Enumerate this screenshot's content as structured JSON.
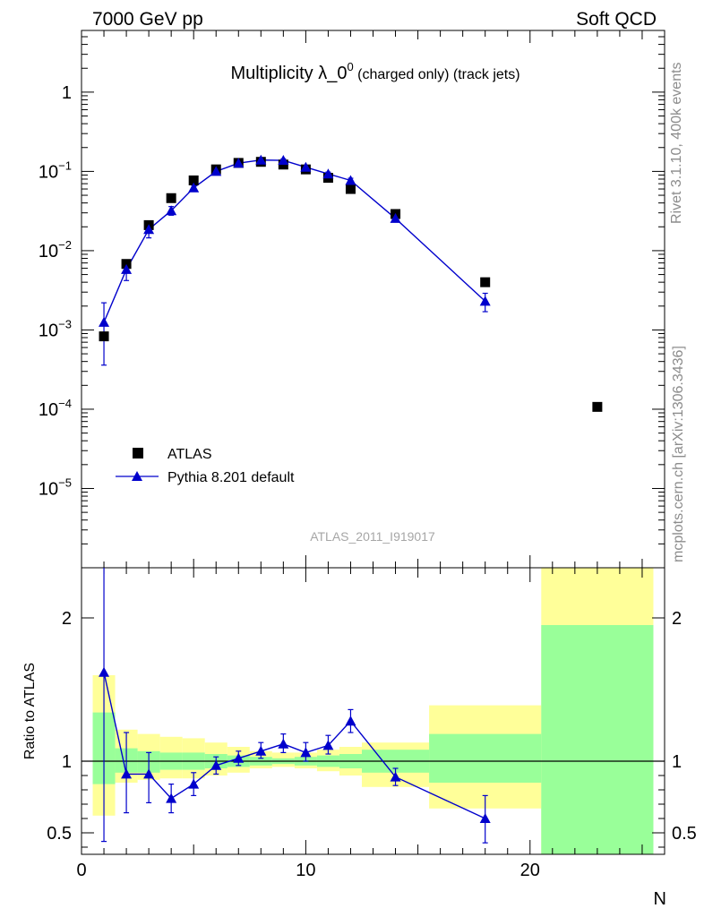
{
  "header": {
    "left": "7000 GeV pp",
    "right": "Soft QCD"
  },
  "side_text": {
    "rivet": "Rivet 3.1.10,  400k events",
    "mcplots": "mcplots.cern.ch [arXiv:1306.3436]"
  },
  "chart_data": [
    {
      "type": "scatter",
      "title_main": "Multiplicity λ_0",
      "title_sup": "0",
      "title_rest": " (charged only) (track jets)",
      "analysis_id": "ATLAS_2011_I919017",
      "yscale": "log",
      "xlim": [
        0,
        26
      ],
      "ylim": [
        1e-06,
        6
      ],
      "y_ticks": [
        {
          "value": 1,
          "base": "1",
          "exp": ""
        },
        {
          "value": 0.1,
          "base": "10",
          "exp": "−1"
        },
        {
          "value": 0.01,
          "base": "10",
          "exp": "−2"
        },
        {
          "value": 0.001,
          "base": "10",
          "exp": "−3"
        },
        {
          "value": 0.0001,
          "base": "10",
          "exp": "−4"
        },
        {
          "value": 1e-05,
          "base": "10",
          "exp": "−5"
        }
      ],
      "legend_placement": "bottom-left",
      "series": [
        {
          "name": "ATLAS",
          "color": "#000000",
          "marker": "square",
          "x": [
            1,
            2,
            3,
            4,
            5,
            6,
            7,
            8,
            9,
            10,
            11,
            12,
            14,
            18,
            23
          ],
          "y": [
            0.00083,
            0.0068,
            0.021,
            0.046,
            0.077,
            0.106,
            0.128,
            0.132,
            0.122,
            0.106,
            0.083,
            0.06,
            0.029,
            0.004,
            0.000107
          ]
        },
        {
          "name": "Pythia 8.201 default",
          "color": "#0000cc",
          "marker": "triangle",
          "x": [
            1,
            2,
            3,
            4,
            5,
            6,
            7,
            8,
            9,
            10,
            11,
            12,
            14,
            18
          ],
          "y": [
            0.00125,
            0.0058,
            0.0185,
            0.032,
            0.062,
            0.1,
            0.127,
            0.139,
            0.138,
            0.113,
            0.093,
            0.077,
            0.0255,
            0.0023
          ],
          "y_err_low": [
            0.00089,
            0.0016,
            0.004,
            0.004,
            0.005,
            0.006,
            0.006,
            0.006,
            0.006,
            0.006,
            0.005,
            0.005,
            0.0025,
            0.0006
          ],
          "y_err_high": [
            0.00095,
            0.0018,
            0.004,
            0.004,
            0.005,
            0.006,
            0.006,
            0.006,
            0.006,
            0.006,
            0.005,
            0.005,
            0.0025,
            0.0006
          ]
        }
      ]
    },
    {
      "type": "scatter",
      "ylabel": "Ratio to ATLAS",
      "xlabel": "N",
      "xlim": [
        0,
        26
      ],
      "ylim": [
        0.35,
        2.35
      ],
      "x_ticks": [
        0,
        10,
        20
      ],
      "y_ticks": [
        0.5,
        1,
        2
      ],
      "reference_line": 1,
      "bands": [
        {
          "x0": 0.5,
          "x1": 1.5,
          "yellow": [
            0.62,
            1.6
          ],
          "green": [
            0.84,
            1.34
          ]
        },
        {
          "x0": 1.5,
          "x1": 2.5,
          "yellow": [
            0.85,
            1.22
          ],
          "green": [
            0.92,
            1.09
          ]
        },
        {
          "x0": 2.5,
          "x1": 3.5,
          "yellow": [
            0.87,
            1.19
          ],
          "green": [
            0.92,
            1.07
          ]
        },
        {
          "x0": 3.5,
          "x1": 4.5,
          "yellow": [
            0.88,
            1.17
          ],
          "green": [
            0.94,
            1.06
          ]
        },
        {
          "x0": 4.5,
          "x1": 5.5,
          "yellow": [
            0.88,
            1.16
          ],
          "green": [
            0.94,
            1.06
          ]
        },
        {
          "x0": 5.5,
          "x1": 6.5,
          "yellow": [
            0.9,
            1.13
          ],
          "green": [
            0.95,
            1.05
          ]
        },
        {
          "x0": 6.5,
          "x1": 7.5,
          "yellow": [
            0.92,
            1.1
          ],
          "green": [
            0.96,
            1.04
          ]
        },
        {
          "x0": 7.5,
          "x1": 8.5,
          "yellow": [
            0.95,
            1.07
          ],
          "green": [
            0.97,
            1.03
          ]
        },
        {
          "x0": 8.5,
          "x1": 9.5,
          "yellow": [
            0.96,
            1.06
          ],
          "green": [
            0.98,
            1.02
          ]
        },
        {
          "x0": 9.5,
          "x1": 10.5,
          "yellow": [
            0.95,
            1.06
          ],
          "green": [
            0.97,
            1.03
          ]
        },
        {
          "x0": 10.5,
          "x1": 11.5,
          "yellow": [
            0.93,
            1.08
          ],
          "green": [
            0.96,
            1.04
          ]
        },
        {
          "x0": 11.5,
          "x1": 12.5,
          "yellow": [
            0.9,
            1.1
          ],
          "green": [
            0.95,
            1.05
          ]
        },
        {
          "x0": 12.5,
          "x1": 15.5,
          "yellow": [
            0.82,
            1.13
          ],
          "green": [
            0.92,
            1.08
          ]
        },
        {
          "x0": 15.5,
          "x1": 20.5,
          "yellow": [
            0.67,
            1.39
          ],
          "green": [
            0.85,
            1.19
          ]
        },
        {
          "x0": 20.5,
          "x1": 25.5,
          "yellow": [
            0.35,
            2.35
          ],
          "green": [
            0.35,
            1.95
          ]
        }
      ],
      "series": [
        {
          "name": "Pythia 8.201 default",
          "color": "#0000cc",
          "marker": "triangle",
          "x": [
            1,
            2,
            3,
            4,
            5,
            6,
            7,
            8,
            9,
            10,
            11,
            12,
            14,
            18
          ],
          "y": [
            1.62,
            0.91,
            0.91,
            0.74,
            0.84,
            0.97,
            1.02,
            1.07,
            1.12,
            1.06,
            1.11,
            1.28,
            0.89,
            0.6
          ],
          "y_err_low": [
            1.18,
            0.27,
            0.2,
            0.1,
            0.08,
            0.06,
            0.05,
            0.05,
            0.06,
            0.06,
            0.06,
            0.08,
            0.06,
            0.17
          ],
          "y_err_high": [
            1.1,
            0.29,
            0.15,
            0.1,
            0.08,
            0.06,
            0.05,
            0.06,
            0.07,
            0.07,
            0.07,
            0.08,
            0.06,
            0.16
          ]
        }
      ]
    }
  ]
}
